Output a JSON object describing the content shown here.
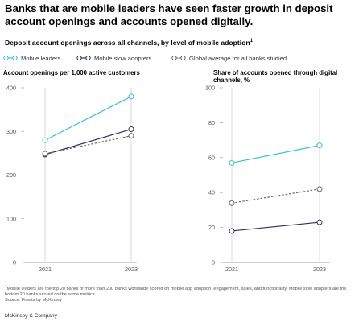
{
  "header": {
    "title": "Banks that are mobile leaders have seen faster growth in deposit account openings and accounts opened digitally.",
    "subtitle": "Deposit account openings across all channels, by level of mobile adoption",
    "subtitle_note_marker": "1"
  },
  "legend": {
    "items": [
      {
        "label": "Mobile leaders",
        "color": "#33bde8",
        "dashed": false
      },
      {
        "label": "Mobile slow adopters",
        "color": "#2b2f6b",
        "dashed": false
      },
      {
        "label": "Global average for all banks studied",
        "color": "#666666",
        "dashed": true
      }
    ]
  },
  "chart_data": [
    {
      "type": "line",
      "title": "Account openings per 1,000 active customers",
      "x": [
        "2021",
        "2023"
      ],
      "ylim": [
        0,
        400
      ],
      "yticks": [
        0,
        100,
        200,
        300,
        400
      ],
      "series": [
        {
          "name": "Mobile leaders",
          "values": [
            280,
            380
          ],
          "color": "#33bde8",
          "dashed": false
        },
        {
          "name": "Mobile slow adopters",
          "values": [
            247,
            305
          ],
          "color": "#2b2f6b",
          "dashed": false
        },
        {
          "name": "Global average for all banks studied",
          "values": [
            249,
            290
          ],
          "color": "#666666",
          "dashed": true
        }
      ]
    },
    {
      "type": "line",
      "title": "Share of accounts opened through digital channels, %",
      "x": [
        "2021",
        "2023"
      ],
      "ylim": [
        0,
        100
      ],
      "yticks": [
        0,
        20,
        40,
        60,
        80,
        100
      ],
      "series": [
        {
          "name": "Mobile leaders",
          "values": [
            57,
            67
          ],
          "color": "#33bde8",
          "dashed": false
        },
        {
          "name": "Mobile slow adopters",
          "values": [
            18,
            23
          ],
          "color": "#2b2f6b",
          "dashed": false
        },
        {
          "name": "Global average for all banks studied",
          "values": [
            34,
            42
          ],
          "color": "#666666",
          "dashed": true
        }
      ]
    }
  ],
  "footnote": {
    "marker": "1",
    "text": "Mobile leaders are the top 20 banks of more than 200 banks worldwide scored on mobile app adoption, engagement, sales, and functionality. Mobile slow adopters are the bottom 20 banks scored on the same metrics.",
    "source": "Source: Finalta by McKinsey"
  },
  "brand": "McKinsey & Company"
}
